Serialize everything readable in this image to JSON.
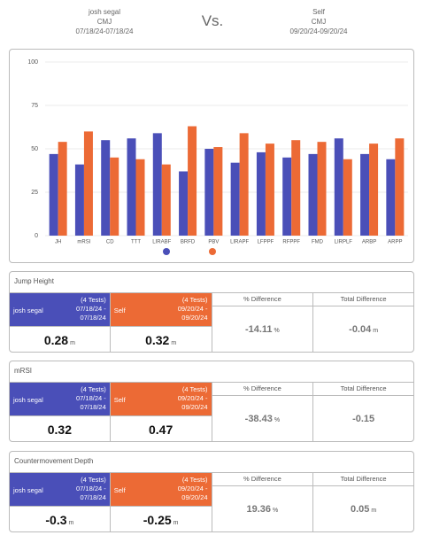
{
  "header": {
    "left": {
      "name": "josh segal",
      "test": "CMJ",
      "dates": "07/18/24-07/18/24"
    },
    "vs": "Vs.",
    "right": {
      "name": "Self",
      "test": "CMJ",
      "dates": "09/20/24-09/20/24"
    }
  },
  "chart_data": {
    "type": "bar",
    "categories": [
      "JH",
      "mRSI",
      "CD",
      "TTT",
      "LIRABF",
      "BRFD",
      "PBV",
      "LIRAPF",
      "LFPPF",
      "RFPPF",
      "FMD",
      "LIRPLF",
      "ARBP",
      "ARPP"
    ],
    "series": [
      {
        "color": "#4a4fb8",
        "values": [
          47,
          41,
          55,
          56,
          59,
          37,
          50,
          42,
          48,
          45,
          47,
          56,
          47,
          44
        ]
      },
      {
        "color": "#ec6a35",
        "values": [
          54,
          60,
          45,
          44,
          41,
          63,
          51,
          59,
          53,
          55,
          54,
          44,
          53,
          56
        ]
      }
    ],
    "ylim": [
      0,
      100
    ],
    "yticks": [
      0,
      25,
      50,
      75,
      100
    ],
    "grid": true
  },
  "panels": [
    {
      "title": "Jump Height",
      "a": {
        "name": "josh segal",
        "tests": "(4 Tests)",
        "dates": "07/18/24 - 07/18/24",
        "value": 0.28,
        "unit": "m"
      },
      "b": {
        "name": "Self",
        "tests": "(4 Tests)",
        "dates": "09/20/24 - 09/20/24",
        "value": 0.32,
        "unit": "m"
      },
      "pct_header": "% Difference",
      "pct": -14.11,
      "pct_unit": "%",
      "total_header": "Total Difference",
      "total": -0.04,
      "total_unit": "m"
    },
    {
      "title": "mRSI",
      "a": {
        "name": "josh segal",
        "tests": "(4 Tests)",
        "dates": "07/18/24 - 07/18/24",
        "value": 0.32
      },
      "b": {
        "name": "Self",
        "tests": "(4 Tests)",
        "dates": "09/20/24 - 09/20/24",
        "value": 0.47
      },
      "pct_header": "% Difference",
      "pct": -38.43,
      "pct_unit": "%",
      "total_header": "Total Difference",
      "total": -0.15
    },
    {
      "title": "Countermovement Depth",
      "a": {
        "name": "josh segal",
        "tests": "(4 Tests)",
        "dates": "07/18/24 - 07/18/24",
        "value": -0.3,
        "unit": "m"
      },
      "b": {
        "name": "Self",
        "tests": "(4 Tests)",
        "dates": "09/20/24 - 09/20/24",
        "value": -0.25,
        "unit": "m"
      },
      "pct_header": "% Difference",
      "pct": 19.36,
      "pct_unit": "%",
      "total_header": "Total Difference",
      "total": 0.05,
      "total_unit": "m"
    }
  ]
}
